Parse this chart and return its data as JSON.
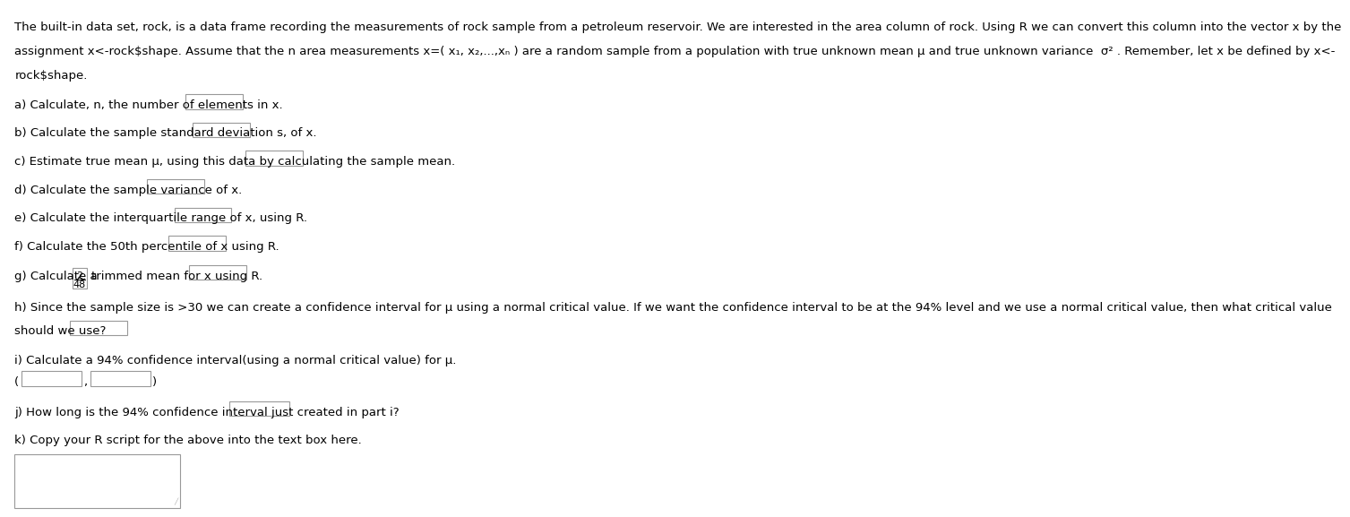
{
  "bg_color": "#ffffff",
  "text_color": "#000000",
  "font_size": 9.5,
  "para_line1": "The built-in data set, rock, is a data frame recording the measurements of rock sample from a petroleum reservoir. We are interested in the area column of rock. Using R we can convert this column into the vector x by the",
  "para_line2": "assignment x<-rock$shape. Assume that the n area measurements x=( x₁, x₂,...,xₙ ) are a random sample from a population with true unknown mean μ and true unknown variance  σ² . Remember, let x be defined by x<-",
  "para_line3": "rock$shape.",
  "item_a": "a) Calculate, n, the number of elements in x.",
  "item_b": "b) Calculate the sample standard deviation s, of x.",
  "item_c": "c) Estimate true mean μ, using this data by calculating the sample mean.",
  "item_d": "d) Calculate the sample variance of x.",
  "item_e": "e) Calculate the interquartile range of x, using R.",
  "item_f": "f) Calculate the 50th percentile of x using R.",
  "item_g_pre": "g) Calculate a",
  "item_g_frac_num": "2",
  "item_g_frac_den": "48",
  "item_g_post": "trimmed mean for x using R.",
  "item_h_line1": "h) Since the sample size is >30 we can create a confidence interval for μ using a normal critical value. If we want the confidence interval to be at the 94% level and we use a normal critical value, then what critical value",
  "item_h_line2": "should we use?",
  "item_i_line1": "i) Calculate a 94% confidence interval(using a normal critical value) for μ.",
  "item_i_paren_open": "(",
  "item_i_comma": ",",
  "item_i_paren_close": ")",
  "item_j": "j) How long is the 94% confidence interval just created in part i?",
  "item_k": "k) Copy your R script for the above into the text box here.",
  "box_edge_color": "#999999",
  "box_face_color": "#ffffff"
}
